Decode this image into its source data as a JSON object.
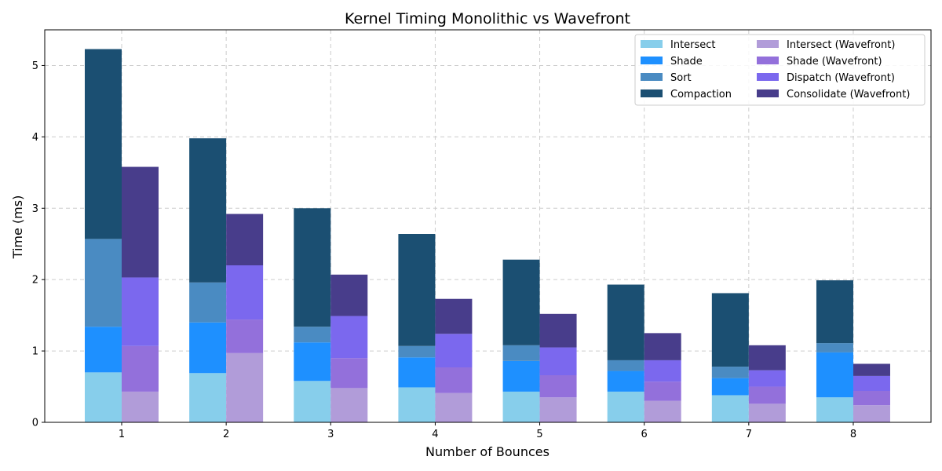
{
  "chart_data": {
    "type": "bar",
    "title": "Kernel Timing Monolithic vs Wavefront",
    "xlabel": "Number of Bounces",
    "ylabel": "Time (ms)",
    "categories": [
      "1",
      "2",
      "3",
      "4",
      "5",
      "6",
      "7",
      "8"
    ],
    "ylim": [
      0,
      5.5
    ],
    "yticks": [
      "0",
      "1",
      "2",
      "3",
      "4",
      "5"
    ],
    "grid": true,
    "legend_position": "top-right",
    "stacked": true,
    "groups": [
      {
        "name": "Monolithic",
        "series": [
          {
            "name": "Intersect",
            "color": "#87ceeb",
            "values": [
              0.7,
              0.69,
              0.58,
              0.49,
              0.43,
              0.43,
              0.38,
              0.35
            ]
          },
          {
            "name": "Shade",
            "color": "#1e90ff",
            "values": [
              0.64,
              0.71,
              0.54,
              0.42,
              0.43,
              0.29,
              0.24,
              0.63
            ]
          },
          {
            "name": "Sort",
            "color": "#4a8bc2",
            "values": [
              1.23,
              0.56,
              0.22,
              0.16,
              0.22,
              0.15,
              0.16,
              0.13
            ]
          },
          {
            "name": "Compaction",
            "color": "#1b4f72",
            "values": [
              2.66,
              2.02,
              1.66,
              1.57,
              1.2,
              1.06,
              1.03,
              0.88
            ]
          }
        ]
      },
      {
        "name": "Wavefront",
        "series": [
          {
            "name": "Intersect (Wavefront)",
            "color": "#b19cd9",
            "values": [
              0.43,
              0.97,
              0.48,
              0.41,
              0.35,
              0.3,
              0.26,
              0.24
            ]
          },
          {
            "name": "Shade (Wavefront)",
            "color": "#9370db",
            "values": [
              0.64,
              0.47,
              0.42,
              0.36,
              0.31,
              0.27,
              0.24,
              0.2
            ]
          },
          {
            "name": "Dispatch (Wavefront)",
            "color": "#7b68ee",
            "values": [
              0.96,
              0.76,
              0.59,
              0.47,
              0.39,
              0.3,
              0.23,
              0.21
            ]
          },
          {
            "name": "Consolidate (Wavefront)",
            "color": "#483d8b",
            "values": [
              1.55,
              0.72,
              0.58,
              0.49,
              0.47,
              0.38,
              0.35,
              0.17
            ]
          }
        ]
      }
    ]
  }
}
